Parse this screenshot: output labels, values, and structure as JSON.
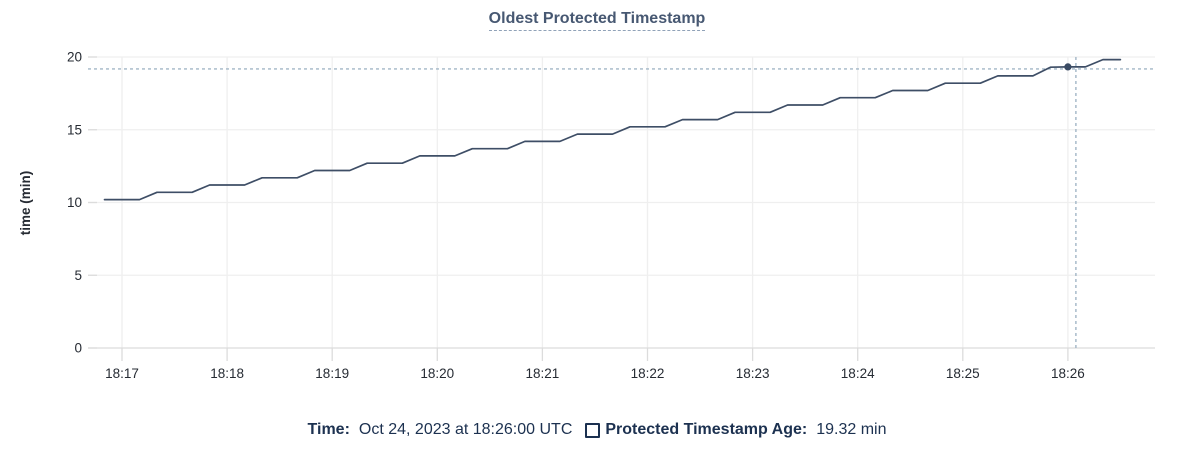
{
  "title": "Oldest Protected Timestamp",
  "colors": {
    "line": "#3e4e66",
    "dot": "#394a63",
    "crosshair": "#a2b6c6",
    "grid": "#efefef",
    "grid_edge": "#dcdcdc",
    "axis_text": "#262b33",
    "title_text": "#475872",
    "legend_text": "#1c3150"
  },
  "chart_data": {
    "type": "line",
    "title": "Oldest Protected Timestamp",
    "xlabel": "",
    "ylabel": "time (min)",
    "ylim": [
      0,
      20
    ],
    "y_ticks": [
      0,
      5,
      10,
      15,
      20
    ],
    "x_tick_labels": [
      "18:17",
      "18:18",
      "18:19",
      "18:20",
      "18:21",
      "18:22",
      "18:23",
      "18:24",
      "18:25",
      "18:26"
    ],
    "grid": true,
    "legend_position": "bottom",
    "series": [
      {
        "name": "Protected Timestamp Age",
        "unit": "min",
        "points": [
          [
            "18:16:50",
            10.2
          ],
          [
            "18:17:00",
            10.2
          ],
          [
            "18:17:10",
            10.2
          ],
          [
            "18:17:20",
            10.7
          ],
          [
            "18:17:30",
            10.7
          ],
          [
            "18:17:40",
            10.7
          ],
          [
            "18:17:50",
            11.2
          ],
          [
            "18:18:00",
            11.2
          ],
          [
            "18:18:10",
            11.2
          ],
          [
            "18:18:20",
            11.7
          ],
          [
            "18:18:30",
            11.7
          ],
          [
            "18:18:40",
            11.7
          ],
          [
            "18:18:50",
            12.2
          ],
          [
            "18:19:00",
            12.2
          ],
          [
            "18:19:10",
            12.2
          ],
          [
            "18:19:20",
            12.7
          ],
          [
            "18:19:30",
            12.7
          ],
          [
            "18:19:40",
            12.7
          ],
          [
            "18:19:50",
            13.2
          ],
          [
            "18:20:00",
            13.2
          ],
          [
            "18:20:10",
            13.2
          ],
          [
            "18:20:20",
            13.7
          ],
          [
            "18:20:30",
            13.7
          ],
          [
            "18:20:40",
            13.7
          ],
          [
            "18:20:50",
            14.2
          ],
          [
            "18:21:00",
            14.2
          ],
          [
            "18:21:10",
            14.2
          ],
          [
            "18:21:20",
            14.7
          ],
          [
            "18:21:30",
            14.7
          ],
          [
            "18:21:40",
            14.7
          ],
          [
            "18:21:50",
            15.2
          ],
          [
            "18:22:00",
            15.2
          ],
          [
            "18:22:10",
            15.2
          ],
          [
            "18:22:20",
            15.7
          ],
          [
            "18:22:30",
            15.7
          ],
          [
            "18:22:40",
            15.7
          ],
          [
            "18:22:50",
            16.2
          ],
          [
            "18:23:00",
            16.2
          ],
          [
            "18:23:10",
            16.2
          ],
          [
            "18:23:20",
            16.7
          ],
          [
            "18:23:30",
            16.7
          ],
          [
            "18:23:40",
            16.7
          ],
          [
            "18:23:50",
            17.2
          ],
          [
            "18:24:00",
            17.2
          ],
          [
            "18:24:10",
            17.2
          ],
          [
            "18:24:20",
            17.7
          ],
          [
            "18:24:30",
            17.7
          ],
          [
            "18:24:40",
            17.7
          ],
          [
            "18:24:50",
            18.2
          ],
          [
            "18:25:00",
            18.2
          ],
          [
            "18:25:10",
            18.2
          ],
          [
            "18:25:20",
            18.7
          ],
          [
            "18:25:30",
            18.7
          ],
          [
            "18:25:40",
            18.7
          ],
          [
            "18:25:50",
            19.3
          ],
          [
            "18:26:00",
            19.32
          ],
          [
            "18:26:10",
            19.32
          ],
          [
            "18:26:20",
            19.82
          ],
          [
            "18:26:30",
            19.82
          ]
        ]
      }
    ],
    "hover": {
      "time": "18:26:00",
      "value": 19.32
    }
  },
  "legend": {
    "time_label": "Time:",
    "time_value": "Oct 24, 2023 at 18:26:00 UTC",
    "series_label": "Protected Timestamp Age:",
    "series_value": "19.32 min"
  }
}
